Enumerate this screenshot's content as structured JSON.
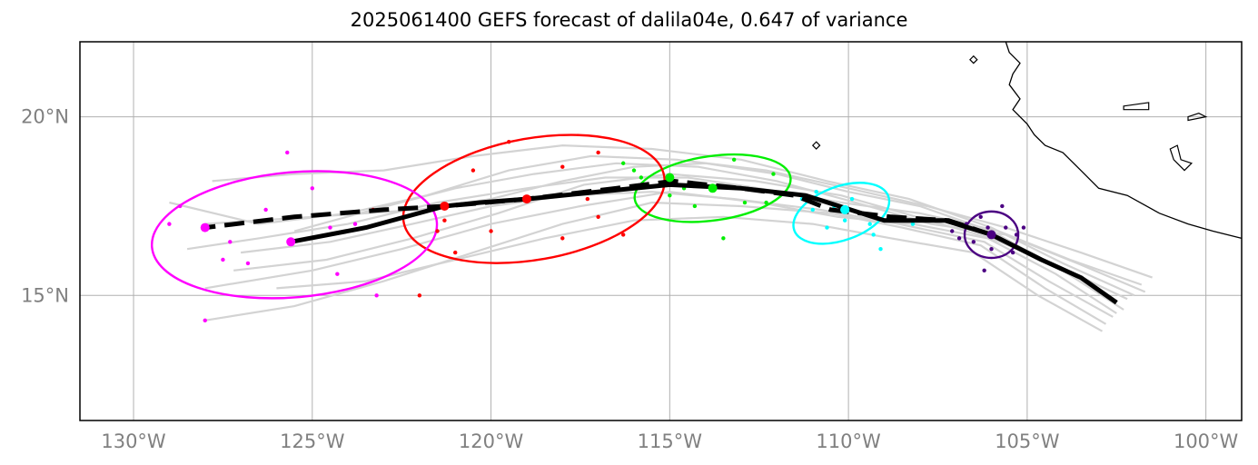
{
  "title": "2025061400 GEFS forecast of dalila04e, 0.647 of variance",
  "axes": {
    "lon_range": [
      -131.5,
      -99.0
    ],
    "lat_range": [
      11.5,
      22.1
    ],
    "x_ticks": [
      {
        "lon": -130,
        "label": "130°W"
      },
      {
        "lon": -125,
        "label": "125°W"
      },
      {
        "lon": -120,
        "label": "120°W"
      },
      {
        "lon": -115,
        "label": "115°W"
      },
      {
        "lon": -110,
        "label": "110°W"
      },
      {
        "lon": -105,
        "label": "105°W"
      },
      {
        "lon": -100,
        "label": "100°W"
      }
    ],
    "y_ticks": [
      {
        "lat": 20,
        "label": "20°N"
      },
      {
        "lat": 15,
        "label": "15°N"
      }
    ],
    "grid": true
  },
  "colors": {
    "ensemble": "#d3d3d3",
    "mean_track": "#000000",
    "grid": "#b0b0b0",
    "coast": "#000000",
    "groups": [
      "#4b0082",
      "#00ffff",
      "#00ee00",
      "#ff0000",
      "#ff00ff"
    ]
  },
  "chart_data": {
    "type": "map-track",
    "solid_track": [
      [
        -102.5,
        14.8
      ],
      [
        -103.5,
        15.5
      ],
      [
        -104.6,
        16.0
      ],
      [
        -106.0,
        16.7
      ],
      [
        -107.3,
        17.1
      ],
      [
        -109.0,
        17.1
      ],
      [
        -111.2,
        17.8
      ],
      [
        -113.0,
        18.0
      ],
      [
        -115.0,
        18.1
      ],
      [
        -117.0,
        17.9
      ],
      [
        -119.0,
        17.7
      ],
      [
        -120.3,
        17.6
      ],
      [
        -121.3,
        17.5
      ],
      [
        -123.5,
        16.9
      ],
      [
        -125.6,
        16.5
      ]
    ],
    "dashed_track": [
      [
        -106.0,
        16.7
      ],
      [
        -107.2,
        17.1
      ],
      [
        -108.8,
        17.2
      ],
      [
        -110.5,
        17.4
      ],
      [
        -111.5,
        17.8
      ],
      [
        -113.0,
        18.0
      ],
      [
        -114.9,
        18.2
      ],
      [
        -116.5,
        18.0
      ],
      [
        -119.0,
        17.7
      ],
      [
        -121.3,
        17.5
      ],
      [
        -123.0,
        17.4
      ],
      [
        -125.5,
        17.2
      ],
      [
        -128.0,
        16.9
      ]
    ],
    "ensemble_tracks": [
      [
        [
          -102.3,
          14.6
        ],
        [
          -104,
          15.7
        ],
        [
          -106,
          16.8
        ],
        [
          -108,
          17.5
        ],
        [
          -110,
          17.9
        ],
        [
          -112,
          18.4
        ],
        [
          -114,
          18.7
        ],
        [
          -116,
          18.6
        ],
        [
          -118,
          18.2
        ],
        [
          -120,
          17.7
        ],
        [
          -122,
          17.4
        ],
        [
          -125,
          17.2
        ],
        [
          -128,
          17.0
        ]
      ],
      [
        [
          -102.5,
          14.5
        ],
        [
          -104.2,
          15.6
        ],
        [
          -106.1,
          16.6
        ],
        [
          -108.2,
          17.0
        ],
        [
          -110.3,
          17.2
        ],
        [
          -112.5,
          17.6
        ],
        [
          -115,
          17.9
        ],
        [
          -117.5,
          17.5
        ],
        [
          -120,
          17.0
        ],
        [
          -122.5,
          16.3
        ],
        [
          -125,
          15.7
        ],
        [
          -128,
          15.2
        ]
      ],
      [
        [
          -102.8,
          14.2
        ],
        [
          -104.5,
          15.2
        ],
        [
          -106.3,
          16.4
        ],
        [
          -108.5,
          16.9
        ],
        [
          -110.5,
          17.3
        ],
        [
          -113,
          17.5
        ],
        [
          -115.5,
          17.6
        ],
        [
          -118,
          17.0
        ],
        [
          -120.5,
          16.2
        ],
        [
          -123,
          15.4
        ],
        [
          -125.5,
          14.7
        ],
        [
          -128,
          14.3
        ]
      ],
      [
        [
          -101.5,
          15.5
        ],
        [
          -103.5,
          16.2
        ],
        [
          -105.6,
          16.9
        ],
        [
          -107.8,
          17.5
        ],
        [
          -110,
          18.0
        ],
        [
          -112.3,
          18.5
        ],
        [
          -114.8,
          18.8
        ],
        [
          -117.2,
          18.9
        ],
        [
          -119.5,
          18.5
        ],
        [
          -121.8,
          17.8
        ],
        [
          -124,
          17.3
        ],
        [
          -126.5,
          17.0
        ],
        [
          -129,
          17.6
        ]
      ],
      [
        [
          -102.9,
          14.0
        ],
        [
          -104.7,
          15.0
        ],
        [
          -106.5,
          16.2
        ],
        [
          -108.8,
          16.6
        ],
        [
          -111,
          17.0
        ],
        [
          -113.5,
          17.2
        ],
        [
          -116,
          17.1
        ],
        [
          -118.5,
          16.6
        ],
        [
          -121,
          16.0
        ],
        [
          -123.5,
          15.4
        ],
        [
          -126,
          15.2
        ]
      ],
      [
        [
          -101.8,
          15.3
        ],
        [
          -103.8,
          16.0
        ],
        [
          -105.8,
          16.8
        ],
        [
          -108,
          17.3
        ],
        [
          -110.2,
          17.6
        ],
        [
          -112.5,
          18.0
        ],
        [
          -114.5,
          18.3
        ],
        [
          -116.8,
          18.3
        ],
        [
          -119,
          18.0
        ],
        [
          -121.5,
          17.6
        ],
        [
          -124,
          17.0
        ],
        [
          -126.5,
          16.6
        ],
        [
          -128.5,
          16.3
        ]
      ],
      [
        [
          -102.0,
          15.0
        ],
        [
          -104,
          15.9
        ],
        [
          -106,
          16.9
        ],
        [
          -108.3,
          17.7
        ],
        [
          -110.6,
          18.2
        ],
        [
          -113,
          18.8
        ],
        [
          -115.5,
          19.1
        ],
        [
          -118,
          19.2
        ],
        [
          -120.5,
          18.9
        ],
        [
          -123,
          18.5
        ],
        [
          -125.5,
          18.4
        ],
        [
          -127.8,
          18.2
        ]
      ],
      [
        [
          -102.6,
          14.4
        ],
        [
          -104.4,
          15.4
        ],
        [
          -106.2,
          16.5
        ],
        [
          -108.6,
          17.0
        ],
        [
          -110.8,
          17.4
        ],
        [
          -113.2,
          17.7
        ],
        [
          -115.5,
          17.9
        ],
        [
          -117.8,
          17.8
        ],
        [
          -120,
          17.5
        ],
        [
          -122.2,
          17.0
        ],
        [
          -124.5,
          16.5
        ],
        [
          -127,
          16.2
        ]
      ],
      [
        [
          -101.7,
          15.1
        ],
        [
          -103.6,
          15.9
        ],
        [
          -105.6,
          16.7
        ],
        [
          -107.7,
          17.0
        ],
        [
          -109.8,
          17.6
        ],
        [
          -112,
          18.2
        ],
        [
          -114.2,
          18.6
        ],
        [
          -116.5,
          18.7
        ],
        [
          -118.8,
          18.4
        ],
        [
          -121,
          18.0
        ],
        [
          -123.3,
          17.4
        ],
        [
          -125.5,
          16.8
        ]
      ],
      [
        [
          -102.2,
          14.9
        ],
        [
          -104.1,
          15.8
        ],
        [
          -106,
          16.6
        ],
        [
          -108.1,
          17.2
        ],
        [
          -110.2,
          17.8
        ],
        [
          -112.6,
          18.2
        ],
        [
          -115,
          18.4
        ],
        [
          -117.4,
          18.1
        ],
        [
          -119.8,
          17.3
        ],
        [
          -122.2,
          16.6
        ],
        [
          -124.6,
          16.0
        ],
        [
          -127.2,
          15.7
        ]
      ]
    ],
    "groups": [
      {
        "center": [
          -106.0,
          16.7
        ],
        "semi_axes": [
          0.75,
          0.65
        ],
        "angle": 0,
        "points": [
          [
            -105.7,
            17.5
          ],
          [
            -105.1,
            16.9
          ],
          [
            -106.3,
            17.2
          ],
          [
            -106.7,
            17.0
          ],
          [
            -107.1,
            16.8
          ],
          [
            -106.0,
            16.3
          ],
          [
            -105.4,
            16.2
          ],
          [
            -106.2,
            15.7
          ],
          [
            -105.8,
            16.6
          ],
          [
            -106.5,
            16.5
          ],
          [
            -105.6,
            16.9
          ],
          [
            -106.1,
            16.9
          ],
          [
            -106.9,
            16.6
          ],
          [
            -105.3,
            16.7
          ]
        ]
      },
      {
        "center": [
          -110.2,
          17.3
        ],
        "semi_axes": [
          1.4,
          0.75
        ],
        "angle": -20,
        "points": [
          [
            -109.1,
            16.3
          ],
          [
            -109.9,
            17.7
          ],
          [
            -110.9,
            17.9
          ],
          [
            -111.3,
            17.7
          ],
          [
            -109.4,
            17.0
          ],
          [
            -110.6,
            16.9
          ],
          [
            -108.2,
            17.0
          ],
          [
            -109.3,
            16.7
          ],
          [
            -110.1,
            17.1
          ],
          [
            -111.0,
            17.4
          ],
          [
            -110.4,
            17.5
          ]
        ]
      },
      {
        "center": [
          -113.8,
          18.0
        ],
        "semi_axes": [
          2.2,
          0.9
        ],
        "angle": -8,
        "points": [
          [
            -116.3,
            18.7
          ],
          [
            -115.8,
            18.3
          ],
          [
            -112.1,
            18.4
          ],
          [
            -113.2,
            18.8
          ],
          [
            -115.0,
            17.8
          ],
          [
            -114.3,
            17.5
          ],
          [
            -112.9,
            17.6
          ],
          [
            -113.5,
            16.6
          ],
          [
            -114.6,
            18.0
          ],
          [
            -112.3,
            17.6
          ],
          [
            -116.0,
            18.5
          ]
        ]
      },
      {
        "center": [
          -118.8,
          17.7
        ],
        "semi_axes": [
          3.7,
          1.7
        ],
        "angle": -10,
        "points": [
          [
            -121.3,
            17.1
          ],
          [
            -120.5,
            18.5
          ],
          [
            -119.5,
            19.3
          ],
          [
            -118.0,
            18.6
          ],
          [
            -117.0,
            19.0
          ],
          [
            -116.3,
            16.7
          ],
          [
            -117.3,
            17.7
          ],
          [
            -120.0,
            16.8
          ],
          [
            -121.0,
            16.2
          ],
          [
            -122.0,
            15.0
          ],
          [
            -118.0,
            16.6
          ],
          [
            -117.0,
            17.2
          ],
          [
            -123.3,
            17.4
          ],
          [
            -121.5,
            16.8
          ]
        ]
      },
      {
        "center": [
          -125.5,
          16.7
        ],
        "semi_axes": [
          4.0,
          1.75
        ],
        "angle": -5,
        "points": [
          [
            -128.0,
            14.3
          ],
          [
            -127.5,
            16.0
          ],
          [
            -126.8,
            15.9
          ],
          [
            -125.0,
            18.0
          ],
          [
            -124.3,
            15.6
          ],
          [
            -125.7,
            19.0
          ],
          [
            -126.3,
            17.4
          ],
          [
            -129.0,
            17.0
          ],
          [
            -128.7,
            17.5
          ],
          [
            -123.2,
            15.0
          ],
          [
            -123.8,
            17.0
          ],
          [
            -127.3,
            16.5
          ],
          [
            -124.5,
            16.9
          ]
        ]
      }
    ],
    "big_dots_solid": [
      [
        -106.0,
        16.7
      ],
      [
        -110.1,
        17.4
      ],
      [
        -113.8,
        18.0
      ],
      [
        -119.0,
        17.7
      ],
      [
        -125.6,
        16.5
      ]
    ],
    "big_dots_dashed": [
      [
        -110.1,
        17.4
      ],
      [
        -115.0,
        18.3
      ],
      [
        -121.3,
        17.5
      ],
      [
        -128.0,
        16.9
      ]
    ],
    "coastline": [
      [
        -105.6,
        22.1
      ],
      [
        -105.5,
        21.8
      ],
      [
        -105.2,
        21.5
      ],
      [
        -105.4,
        21.2
      ],
      [
        -105.5,
        20.9
      ],
      [
        -105.2,
        20.5
      ],
      [
        -105.4,
        20.2
      ],
      [
        -105.0,
        19.8
      ],
      [
        -104.8,
        19.5
      ],
      [
        -104.5,
        19.2
      ],
      [
        -104.0,
        19.0
      ],
      [
        -103.5,
        18.5
      ],
      [
        -103.0,
        18.0
      ],
      [
        -102.2,
        17.8
      ],
      [
        -101.3,
        17.3
      ],
      [
        -100.5,
        17.0
      ],
      [
        -99.8,
        16.8
      ],
      [
        -99.0,
        16.6
      ]
    ],
    "islands": [
      [
        [
          -106.5,
          21.7
        ],
        [
          -106.4,
          21.6
        ],
        [
          -106.5,
          21.5
        ],
        [
          -106.6,
          21.6
        ],
        [
          -106.5,
          21.7
        ]
      ],
      [
        [
          -110.9,
          19.3
        ],
        [
          -110.8,
          19.2
        ],
        [
          -110.9,
          19.1
        ],
        [
          -111.0,
          19.2
        ],
        [
          -110.9,
          19.3
        ]
      ],
      [
        [
          -102.3,
          20.3
        ],
        [
          -101.6,
          20.4
        ],
        [
          -101.6,
          20.2
        ],
        [
          -102.3,
          20.2
        ],
        [
          -102.3,
          20.3
        ]
      ],
      [
        [
          -100.5,
          20.0
        ],
        [
          -100.2,
          20.1
        ],
        [
          -100.0,
          20.0
        ],
        [
          -100.5,
          19.9
        ],
        [
          -100.5,
          20.0
        ]
      ],
      [
        [
          -101.0,
          19.1
        ],
        [
          -100.8,
          19.2
        ],
        [
          -100.7,
          18.8
        ],
        [
          -100.4,
          18.7
        ],
        [
          -100.6,
          18.5
        ],
        [
          -100.9,
          18.8
        ],
        [
          -101.0,
          19.1
        ]
      ]
    ]
  }
}
